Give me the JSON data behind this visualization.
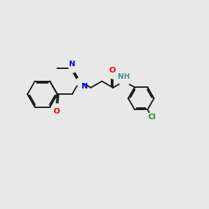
{
  "background_color": "#e8e8e8",
  "bond_color": "#1a1a1a",
  "N_color": "#0000ee",
  "O_color": "#ee0000",
  "Cl_color": "#1a8a1a",
  "NH_color": "#4a9090",
  "lw": 1.4,
  "figsize": [
    3.0,
    3.0
  ],
  "dpi": 100,
  "xlim": [
    0,
    10
  ],
  "ylim": [
    1,
    8
  ]
}
